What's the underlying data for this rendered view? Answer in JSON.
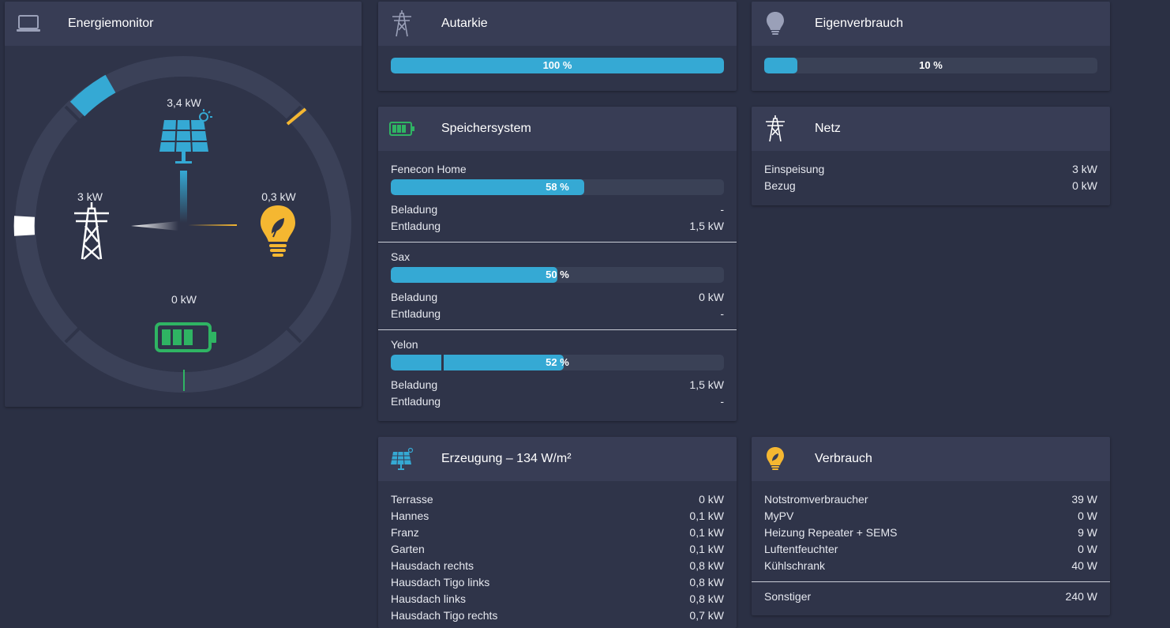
{
  "energiemonitor": {
    "title": "Energiemonitor",
    "icon": "laptop-icon",
    "pv_value": "3,4 kW",
    "grid_value": "3 kW",
    "consumption_value": "0,3 kW",
    "battery_value": "0 kW",
    "colors": {
      "pv": "#35a9d4",
      "grid": "#ffffff",
      "consumption": "#f5b731",
      "battery": "#2fb463"
    }
  },
  "autarkie": {
    "title": "Autarkie",
    "icon": "power-tower-icon",
    "percent": 100,
    "label": "100 %"
  },
  "eigenverbrauch": {
    "title": "Eigenverbrauch",
    "icon": "lightbulb-icon",
    "percent": 10,
    "label": "10 %"
  },
  "speichersystem": {
    "title": "Speichersystem",
    "icon": "battery-icon",
    "beladung_label": "Beladung",
    "entladung_label": "Entladung",
    "systems": [
      {
        "name": "Fenecon Home",
        "percent": 58,
        "label": "58 %",
        "beladung": "-",
        "entladung": "1,5 kW"
      },
      {
        "name": "Sax",
        "percent": 50,
        "label": "50 %",
        "beladung": "0 kW",
        "entladung": "-"
      },
      {
        "name": "Yelon",
        "percent": 52,
        "label": "52 %",
        "beladung": "1,5 kW",
        "entladung": "-"
      }
    ]
  },
  "netz": {
    "title": "Netz",
    "icon": "power-tower-icon",
    "rows": [
      {
        "label": "Einspeisung",
        "value": "3 kW"
      },
      {
        "label": "Bezug",
        "value": "0 kW"
      }
    ]
  },
  "erzeugung": {
    "title": "Erzeugung – 134 W/m²",
    "icon": "solar-panel-icon",
    "rows": [
      {
        "label": "Terrasse",
        "value": "0 kW"
      },
      {
        "label": "Hannes",
        "value": "0,1 kW"
      },
      {
        "label": "Franz",
        "value": "0,1 kW"
      },
      {
        "label": "Garten",
        "value": "0,1 kW"
      },
      {
        "label": "Hausdach rechts",
        "value": "0,8 kW"
      },
      {
        "label": "Hausdach Tigo links",
        "value": "0,8 kW"
      },
      {
        "label": "Hausdach links",
        "value": "0,8 kW"
      },
      {
        "label": "Hausdach Tigo rechts",
        "value": "0,7 kW"
      }
    ]
  },
  "verbrauch": {
    "title": "Verbrauch",
    "icon": "lightbulb-icon",
    "rows": [
      {
        "label": "Notstromverbraucher",
        "value": "39 W"
      },
      {
        "label": "MyPV",
        "value": "0 W"
      },
      {
        "label": "Heizung Repeater + SEMS",
        "value": "9 W"
      },
      {
        "label": "Luftentfeuchter",
        "value": "0 W"
      },
      {
        "label": "Kühlschrank",
        "value": "40 W"
      }
    ],
    "other": {
      "label": "Sonstiger",
      "value": "240 W"
    }
  }
}
